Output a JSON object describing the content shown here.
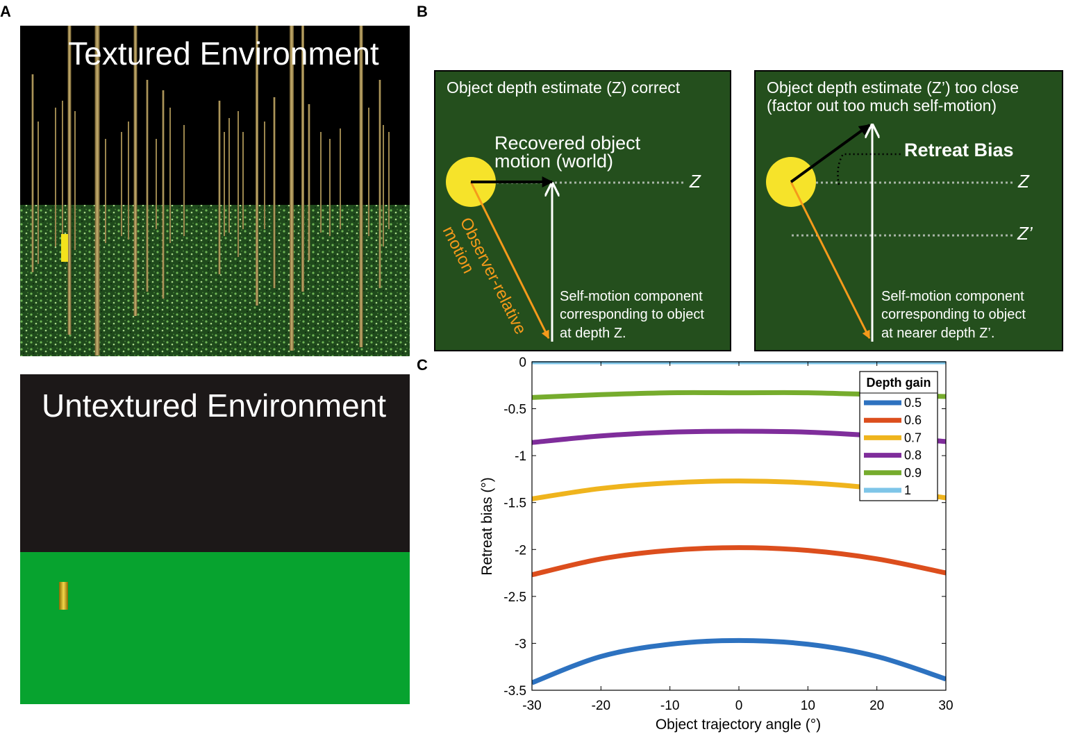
{
  "panels": {
    "a": {
      "letter": "A",
      "textured_title": "Textured Environment",
      "untextured_title": "Untextured Environment"
    },
    "b": {
      "letter": "B",
      "left": {
        "heading": "Object depth estimate (Z) correct",
        "recovered_line1": "Recovered object",
        "recovered_line2": "motion (world)",
        "z_label": "Z",
        "observer_line1": "Observer-relative",
        "observer_line2": "motion",
        "self_line1": "Self-motion component",
        "self_line2": "corresponding to object",
        "self_line3": "at depth Z."
      },
      "right": {
        "heading_line1": "Object depth estimate (Z’) too close",
        "heading_line2": "(factor out too much self-motion)",
        "retreat": "Retreat Bias",
        "z_label": "Z",
        "zprime_label": "Z’",
        "self_line1": "Self-motion component",
        "self_line2": "corresponding to object",
        "self_line3": "at nearer depth Z’."
      }
    },
    "c": {
      "letter": "C"
    }
  },
  "colors": {
    "scene_sky": "#000000",
    "scene_ground": "#1f4a1c",
    "untextured_sky": "#1c1818",
    "untextured_ground": "#07a32f",
    "diagram_bg": "#244f1d",
    "sphere": "#f6e32a",
    "observer_arrow": "#f59a1b"
  },
  "chart_data": {
    "type": "line",
    "xlabel": "Object trajectory angle (°)",
    "ylabel": "Retreat bias (°)",
    "xlim": [
      -30,
      30
    ],
    "ylim": [
      -3.5,
      0
    ],
    "xticks": [
      -30,
      -20,
      -10,
      0,
      10,
      20,
      30
    ],
    "yticks": [
      0,
      -0.5,
      -1,
      -1.5,
      -2,
      -2.5,
      -3,
      -3.5
    ],
    "x": [
      -30,
      -20,
      -10,
      0,
      10,
      20,
      30
    ],
    "legend_title": "Depth gain",
    "legend_position": "top-right",
    "grid": false,
    "series": [
      {
        "name": "0.5",
        "color": "#2d72c0",
        "values": [
          -3.42,
          -3.14,
          -3.01,
          -2.97,
          -3.01,
          -3.14,
          -3.38
        ]
      },
      {
        "name": "0.6",
        "color": "#dc4e1d",
        "values": [
          -2.27,
          -2.1,
          -2.01,
          -1.98,
          -2.01,
          -2.1,
          -2.25
        ]
      },
      {
        "name": "0.7",
        "color": "#efb41d",
        "values": [
          -1.46,
          -1.35,
          -1.29,
          -1.27,
          -1.29,
          -1.35,
          -1.45
        ]
      },
      {
        "name": "0.8",
        "color": "#7f2d9b",
        "values": [
          -0.86,
          -0.79,
          -0.75,
          -0.74,
          -0.75,
          -0.79,
          -0.85
        ]
      },
      {
        "name": "0.9",
        "color": "#76ac2d",
        "values": [
          -0.38,
          -0.35,
          -0.33,
          -0.33,
          -0.33,
          -0.35,
          -0.37
        ]
      },
      {
        "name": "1",
        "color": "#7ec5e8",
        "values": [
          0,
          0,
          0,
          0,
          0,
          0,
          0
        ]
      }
    ]
  }
}
